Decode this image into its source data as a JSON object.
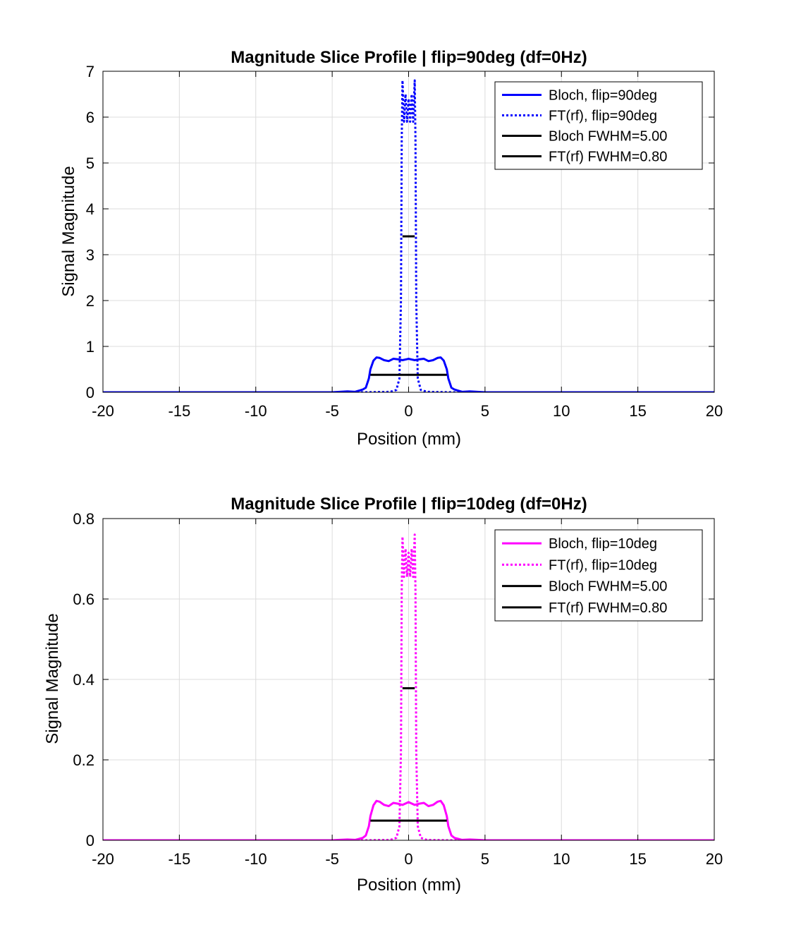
{
  "chart_data": [
    {
      "type": "line",
      "title": "Magnitude Slice Profile | flip=90deg (df=0Hz)",
      "xlabel": "Position (mm)",
      "ylabel": "Signal Magnitude",
      "xlim": [
        -20,
        20
      ],
      "ylim": [
        0,
        7
      ],
      "xticks": [
        -20,
        -15,
        -10,
        -5,
        0,
        5,
        10,
        15,
        20
      ],
      "xtick_labels": [
        "-20",
        "-15",
        "-10",
        "-5",
        "0",
        "5",
        "10",
        "15",
        "20"
      ],
      "yticks": [
        0,
        1,
        2,
        3,
        4,
        5,
        6,
        7
      ],
      "ytick_labels": [
        "0",
        "1",
        "2",
        "3",
        "4",
        "5",
        "6",
        "7"
      ],
      "grid": true,
      "legend_position": "top-right",
      "series": [
        {
          "name": "Bloch, flip=90deg",
          "color": "#0000ff",
          "style": "solid",
          "x": [
            -20,
            -5,
            -4.5,
            -4,
            -3.5,
            -3.2,
            -3,
            -2.8,
            -2.6,
            -2.5,
            -2.3,
            -2.1,
            -1.9,
            -1.6,
            -1.3,
            -1,
            -0.7,
            -0.4,
            0,
            0.4,
            0.7,
            1,
            1.3,
            1.6,
            1.9,
            2.1,
            2.3,
            2.5,
            2.6,
            2.8,
            3,
            3.2,
            3.5,
            4,
            4.5,
            5,
            20
          ],
          "y": [
            0,
            0,
            0.01,
            0.02,
            0.01,
            0.04,
            0.06,
            0.1,
            0.3,
            0.5,
            0.69,
            0.76,
            0.75,
            0.7,
            0.68,
            0.73,
            0.72,
            0.7,
            0.73,
            0.7,
            0.72,
            0.73,
            0.68,
            0.7,
            0.75,
            0.76,
            0.69,
            0.5,
            0.3,
            0.1,
            0.06,
            0.04,
            0.01,
            0.02,
            0.01,
            0,
            0
          ]
        },
        {
          "name": "FT(rf), flip=90deg",
          "color": "#0000ff",
          "style": "dotted",
          "x": [
            -20,
            -3,
            -1.2,
            -0.8,
            -0.6,
            -0.5,
            -0.45,
            -0.4,
            -0.3,
            -0.2,
            -0.1,
            0,
            0.1,
            0.2,
            0.3,
            0.4,
            0.45,
            0.5,
            0.6,
            0.8,
            1.2,
            3,
            20
          ],
          "y": [
            0,
            0,
            0.01,
            0.05,
            0.3,
            2.0,
            5.5,
            6.8,
            5.9,
            6.5,
            5.9,
            6.4,
            5.9,
            6.5,
            5.9,
            6.8,
            5.5,
            2.0,
            0.3,
            0.05,
            0.01,
            0,
            0
          ]
        },
        {
          "name": "Bloch FWHM=5.00",
          "color": "#000000",
          "style": "solid",
          "x": [
            -2.5,
            2.5
          ],
          "y": [
            0.38,
            0.38
          ]
        },
        {
          "name": "FT(rf) FWHM=0.80",
          "color": "#000000",
          "style": "solid",
          "x": [
            -0.4,
            0.4
          ],
          "y": [
            3.4,
            3.4
          ]
        }
      ]
    },
    {
      "type": "line",
      "title": "Magnitude Slice Profile | flip=10deg (df=0Hz)",
      "xlabel": "Position (mm)",
      "ylabel": "Signal Magnitude",
      "xlim": [
        -20,
        20
      ],
      "ylim": [
        0,
        0.8
      ],
      "xticks": [
        -20,
        -15,
        -10,
        -5,
        0,
        5,
        10,
        15,
        20
      ],
      "xtick_labels": [
        "-20",
        "-15",
        "-10",
        "-5",
        "0",
        "5",
        "10",
        "15",
        "20"
      ],
      "yticks": [
        0,
        0.2,
        0.4,
        0.6,
        0.8
      ],
      "ytick_labels": [
        "0",
        "0.2",
        "0.4",
        "0.6",
        "0.8"
      ],
      "grid": true,
      "legend_position": "top-right",
      "series": [
        {
          "name": "Bloch, flip=10deg",
          "color": "#ff00ff",
          "style": "solid",
          "x": [
            -20,
            -5,
            -4.5,
            -4,
            -3.5,
            -3.2,
            -3,
            -2.8,
            -2.6,
            -2.5,
            -2.3,
            -2.1,
            -1.9,
            -1.6,
            -1.3,
            -1,
            -0.7,
            -0.4,
            0,
            0.4,
            0.7,
            1,
            1.3,
            1.6,
            1.9,
            2.1,
            2.3,
            2.5,
            2.6,
            2.8,
            3,
            3.2,
            3.5,
            4,
            4.5,
            5,
            20
          ],
          "y": [
            0,
            0,
            0.001,
            0.002,
            0.001,
            0.004,
            0.006,
            0.012,
            0.035,
            0.06,
            0.087,
            0.098,
            0.096,
            0.088,
            0.085,
            0.093,
            0.091,
            0.088,
            0.095,
            0.088,
            0.091,
            0.093,
            0.085,
            0.088,
            0.096,
            0.098,
            0.087,
            0.06,
            0.035,
            0.012,
            0.006,
            0.004,
            0.001,
            0.002,
            0.001,
            0,
            0
          ]
        },
        {
          "name": "FT(rf), flip=10deg",
          "color": "#ff00ff",
          "style": "dotted",
          "x": [
            -20,
            -3,
            -1.2,
            -0.8,
            -0.6,
            -0.5,
            -0.45,
            -0.4,
            -0.3,
            -0.2,
            -0.1,
            0,
            0.1,
            0.2,
            0.3,
            0.4,
            0.45,
            0.5,
            0.6,
            0.8,
            1.2,
            3,
            20
          ],
          "y": [
            0,
            0,
            0.001,
            0.006,
            0.035,
            0.22,
            0.62,
            0.755,
            0.655,
            0.725,
            0.655,
            0.715,
            0.655,
            0.725,
            0.655,
            0.76,
            0.62,
            0.22,
            0.035,
            0.006,
            0.001,
            0,
            0
          ]
        },
        {
          "name": "Bloch FWHM=5.00",
          "color": "#000000",
          "style": "solid",
          "x": [
            -2.5,
            2.5
          ],
          "y": [
            0.049,
            0.049
          ]
        },
        {
          "name": "FT(rf) FWHM=0.80",
          "color": "#000000",
          "style": "solid",
          "x": [
            -0.4,
            0.4
          ],
          "y": [
            0.378,
            0.378
          ]
        }
      ]
    }
  ]
}
